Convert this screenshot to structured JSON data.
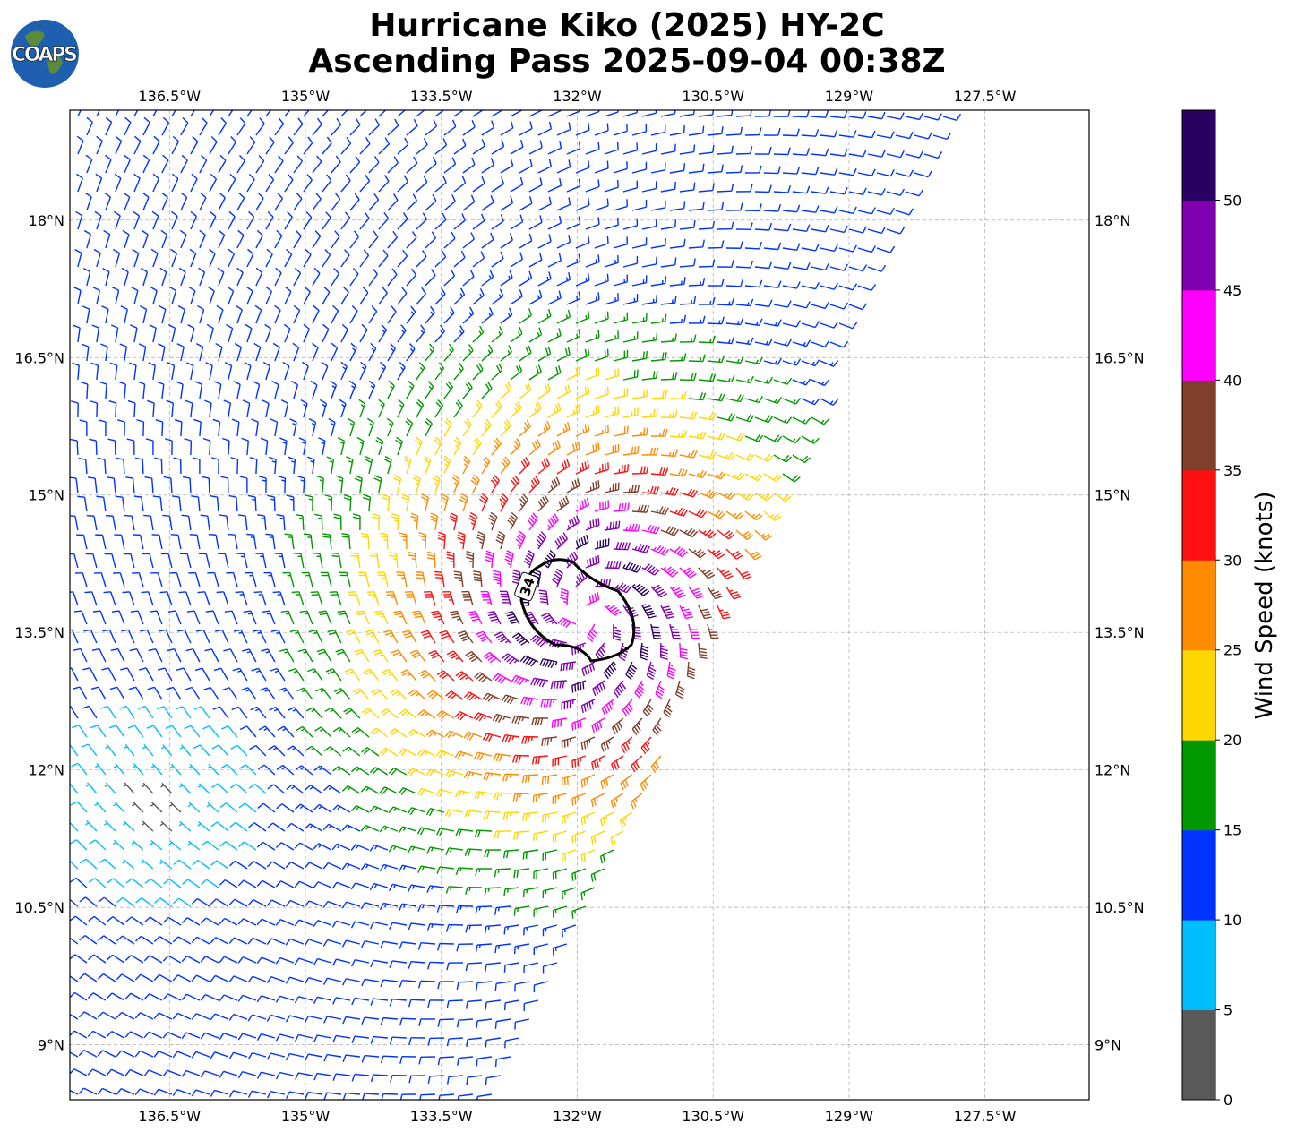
{
  "title": {
    "line1": "Hurricane Kiko (2025) HY-2C",
    "line2": "Ascending Pass 2025-09-04 00:38Z"
  },
  "logo": {
    "text": "COAPS"
  },
  "chart_data": {
    "type": "wind-barb-map",
    "extent": {
      "lon": [
        -137.6,
        -126.35
      ],
      "lat": [
        8.4,
        19.2
      ]
    },
    "lon_ticks": [
      {
        "value": -136.5,
        "label": "136.5°W"
      },
      {
        "value": -135,
        "label": "135°W"
      },
      {
        "value": -133.5,
        "label": "133.5°W"
      },
      {
        "value": -132,
        "label": "132°W"
      },
      {
        "value": -130.5,
        "label": "130.5°W"
      },
      {
        "value": -129,
        "label": "129°W"
      },
      {
        "value": -127.5,
        "label": "127.5°W"
      }
    ],
    "lat_ticks": [
      {
        "value": 18,
        "label": "18°N"
      },
      {
        "value": 16.5,
        "label": "16.5°N"
      },
      {
        "value": 15,
        "label": "15°N"
      },
      {
        "value": 13.5,
        "label": "13.5°N"
      },
      {
        "value": 12,
        "label": "12°N"
      },
      {
        "value": 10.5,
        "label": "10.5°N"
      },
      {
        "value": 9,
        "label": "9°N"
      }
    ],
    "grid": true,
    "storm_center": {
      "lon": -131.9,
      "lat": 13.7
    },
    "contour": {
      "label": "34",
      "level_knots": 34
    },
    "colorbar": {
      "label": "Wind Speed (knots)",
      "levels": [
        0,
        5,
        10,
        15,
        20,
        25,
        30,
        35,
        40,
        45,
        50,
        55
      ],
      "tick_labels": [
        "0",
        "5",
        "10",
        "15",
        "20",
        "25",
        "30",
        "35",
        "40",
        "45",
        "50"
      ],
      "colors": [
        "#595959",
        "#00bfff",
        "#0033ff",
        "#009900",
        "#ffd700",
        "#ff8c00",
        "#ff1010",
        "#7f3f2a",
        "#ff00ff",
        "#8000b0",
        "#2a0060"
      ]
    }
  }
}
